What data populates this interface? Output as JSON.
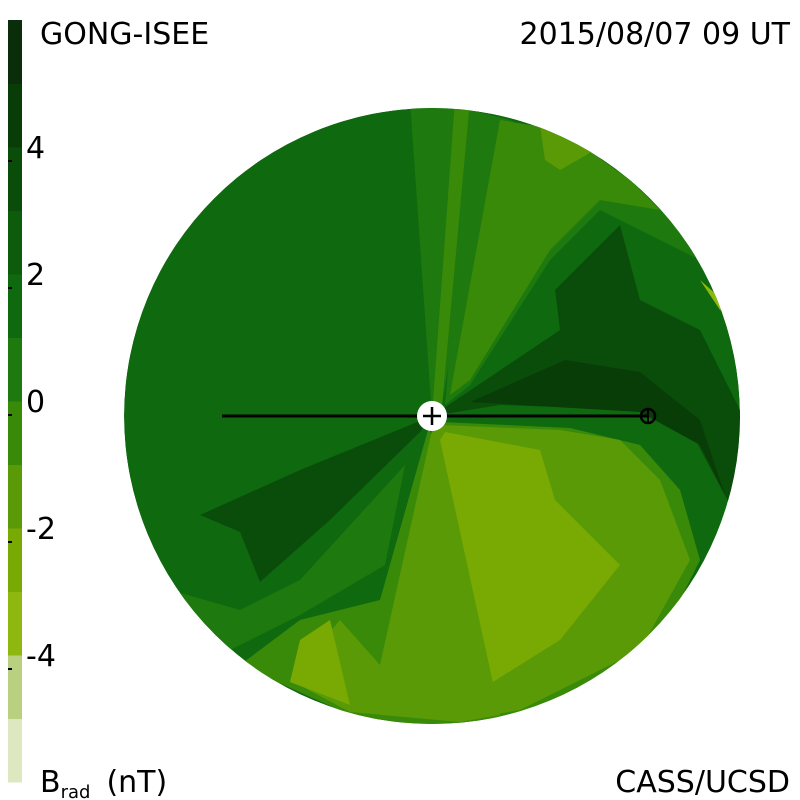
{
  "chart_data": {
    "type": "colorbar-map",
    "title": "GONG-ISEE",
    "subtitle": "2015/08/07 09 UT",
    "credit": "CASS/UCSD",
    "colorbar_label": {
      "symbol": "B",
      "subscript": "rad",
      "unit": "(nT)"
    },
    "clim": [
      -6,
      6
    ],
    "cticks": [
      4,
      2,
      0,
      -2,
      -4
    ],
    "colors": [
      "#dde8c0",
      "#b8d080",
      "#8eb810",
      "#78aa03",
      "#5a9a06",
      "#3a8a0a",
      "#1e7a0e",
      "#0f6a0f",
      "#0c5c0c",
      "#0a4d0a",
      "#083d08",
      "#0a2e0a"
    ]
  }
}
